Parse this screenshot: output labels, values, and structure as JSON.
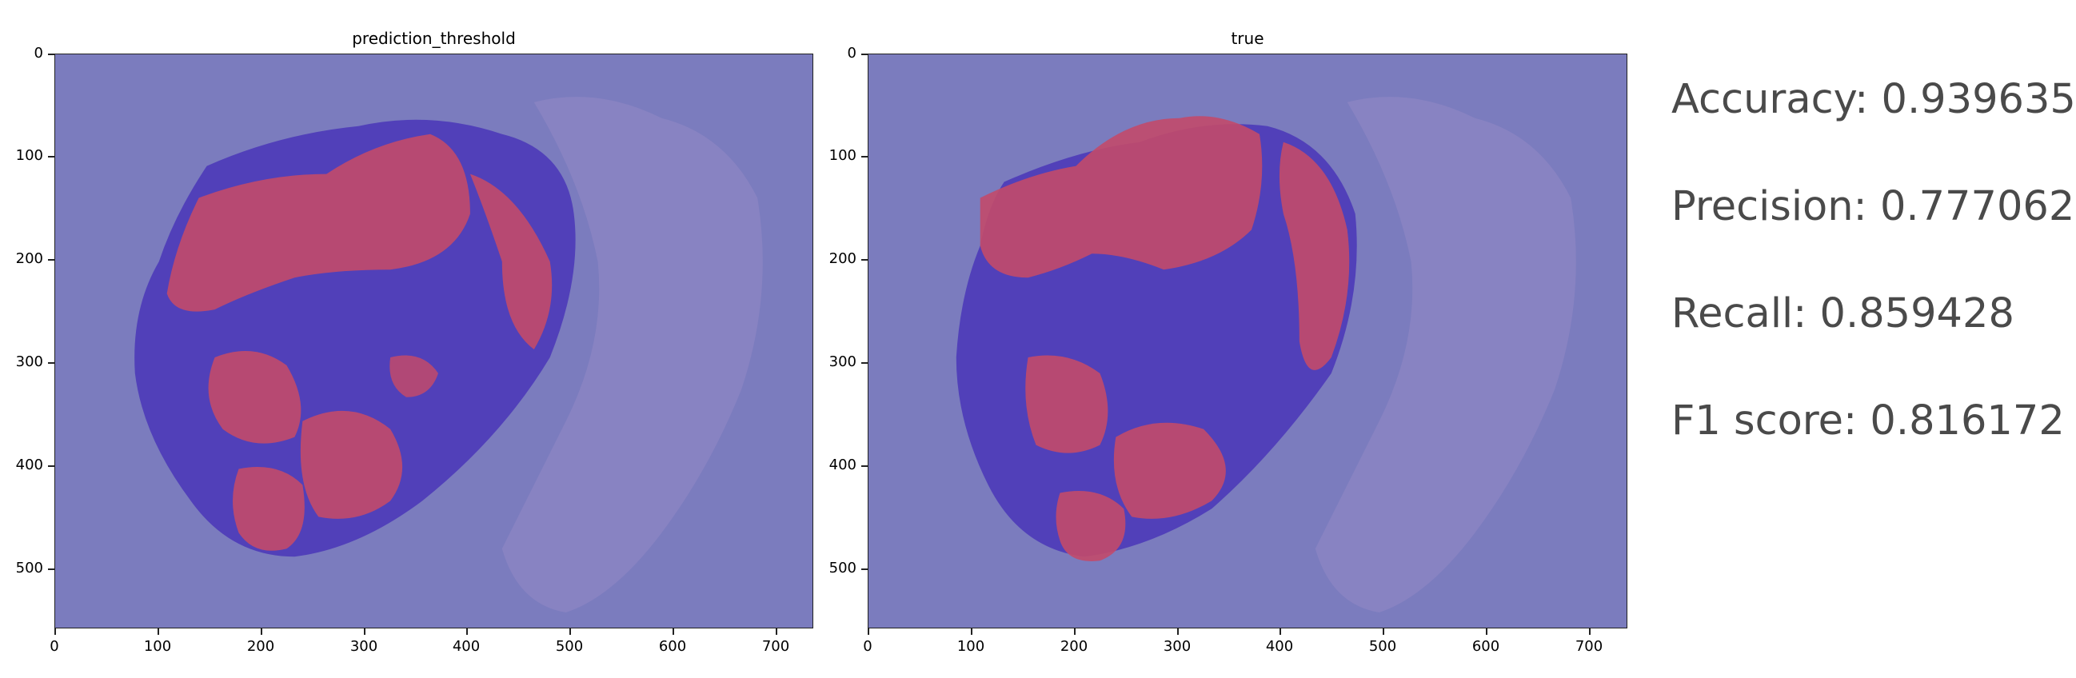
{
  "panels": [
    {
      "title": "prediction_threshold",
      "xticks": [
        "0",
        "100",
        "200",
        "300",
        "400",
        "500",
        "600",
        "700"
      ],
      "yticks": [
        "0",
        "100",
        "200",
        "300",
        "400",
        "500"
      ]
    },
    {
      "title": "true",
      "xticks": [
        "0",
        "100",
        "200",
        "300",
        "400",
        "500",
        "600",
        "700"
      ],
      "yticks": [
        "0",
        "100",
        "200",
        "300",
        "400",
        "500"
      ]
    }
  ],
  "metrics": {
    "accuracy": "Accuracy: 0.939635",
    "precision": "Precision: 0.777062",
    "recall": "Recall: 0.859428",
    "f1": "F1 score: 0.816172"
  },
  "colors": {
    "background_overlay": "#7b7cbe",
    "tissue_dark": "#4a36b8",
    "tumor_overlay": "#c24a6a",
    "faint_tissue": "#9a8cc8"
  }
}
